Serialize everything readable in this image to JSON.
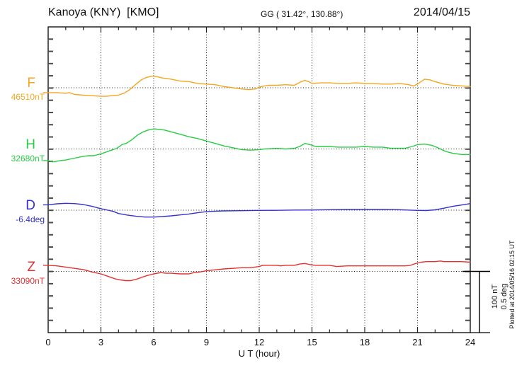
{
  "header": {
    "station": "Kanoya (KNY)  [KMO]",
    "coordinates": "GG ( 31.42°, 130.88°)",
    "date": "2014/04/15"
  },
  "axes": {
    "x_label": "U T (hour)",
    "x_ticks": [
      {
        "hour": 0,
        "label": "0"
      },
      {
        "hour": 3,
        "label": "3"
      },
      {
        "hour": 6,
        "label": "6"
      },
      {
        "hour": 9,
        "label": "9"
      },
      {
        "hour": 12,
        "label": "12"
      },
      {
        "hour": 15,
        "label": "15"
      },
      {
        "hour": 18,
        "label": "18"
      },
      {
        "hour": 21,
        "label": "21"
      },
      {
        "hour": 24,
        "label": "24"
      }
    ]
  },
  "scale_bar": {
    "line1": "100 nT",
    "line2": "0.5 deg"
  },
  "plotted_at": "Plotted at 2014/05/16 02:15 UT",
  "chart_data": {
    "type": "line",
    "title": "Kanoya (KNY) [KMO] magnetogram 2014/04/15",
    "xlabel": "U T (hour)",
    "xlim": [
      0,
      24
    ],
    "grid_hours": [
      3,
      6,
      9,
      12,
      15,
      18,
      21
    ],
    "grid": true,
    "scale": {
      "nT_per_division": 100,
      "deg_per_division": 0.5
    },
    "series": [
      {
        "name": "F",
        "unit": "nT",
        "baseline": 46510,
        "baseline_label": "46510nT",
        "color": "#f5a randomly",
        "points": []
      }
    ]
  }
}
